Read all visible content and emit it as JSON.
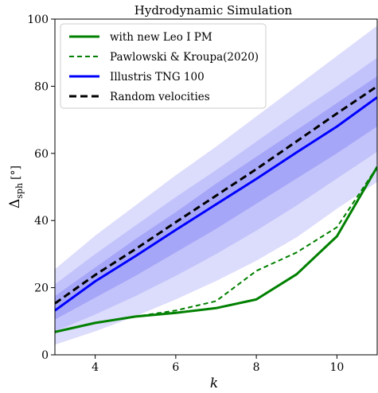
{
  "chart_data": {
    "type": "line",
    "title": "Hydrodynamic Simulation",
    "xlabel": "k",
    "ylabel": "Δsph [°]",
    "ylabel_main": "Δ",
    "ylabel_sub": "sph",
    "ylabel_unit": "[°]",
    "xlim": [
      3,
      11
    ],
    "ylim": [
      0,
      100
    ],
    "xticks": [
      4,
      6,
      8,
      10
    ],
    "yticks": [
      0,
      20,
      40,
      60,
      80,
      100
    ],
    "grid": false,
    "legend_position": "top-left",
    "x": [
      3,
      4,
      5,
      6,
      7,
      8,
      9,
      10,
      11
    ],
    "series": [
      {
        "name": "with new Leo I PM",
        "color": "#008000",
        "style": "solid",
        "width": 3,
        "values": [
          6.8,
          9.5,
          11.4,
          12.5,
          13.9,
          16.5,
          24.0,
          35.3,
          56.0
        ]
      },
      {
        "name": "Pawlowski & Kroupa(2020)",
        "color": "#008000",
        "style": "dashed",
        "width": 2,
        "values": [
          6.8,
          9.5,
          11.4,
          13.2,
          16.0,
          25.0,
          30.5,
          38.0,
          56.0
        ]
      },
      {
        "name": "Illustris TNG 100",
        "color": "#0000ff",
        "style": "solid",
        "width": 3,
        "values": [
          13.2,
          21.9,
          29.4,
          37.2,
          44.8,
          52.4,
          60.3,
          68.0,
          76.7
        ]
      },
      {
        "name": "Random velocities",
        "color": "#000000",
        "style": "dashed",
        "width": 3,
        "values": [
          15.3,
          23.8,
          31.5,
          39.5,
          47.4,
          55.3,
          63.6,
          71.9,
          80.0
        ]
      }
    ],
    "bands": [
      {
        "color": "#dcdcfc",
        "lower": [
          3.0,
          7.0,
          11.5,
          16.5,
          22.0,
          28.0,
          35.0,
          43.5,
          51.5
        ],
        "upper": [
          25.5,
          35.5,
          44.5,
          53.5,
          62.0,
          71.0,
          80.0,
          89.0,
          98.0
        ]
      },
      {
        "color": "#c3c3fb",
        "lower": [
          7.0,
          12.0,
          17.5,
          23.5,
          30.0,
          37.0,
          44.5,
          52.5,
          60.5
        ],
        "upper": [
          21.0,
          30.0,
          38.5,
          47.0,
          55.0,
          63.5,
          72.0,
          80.0,
          88.5
        ]
      },
      {
        "color": "#a6a6f8",
        "lower": [
          10.5,
          17.0,
          23.5,
          30.5,
          37.5,
          45.0,
          52.5,
          60.0,
          68.0
        ],
        "upper": [
          17.5,
          26.0,
          34.5,
          42.5,
          51.0,
          59.0,
          67.0,
          75.0,
          83.0
        ]
      }
    ]
  }
}
